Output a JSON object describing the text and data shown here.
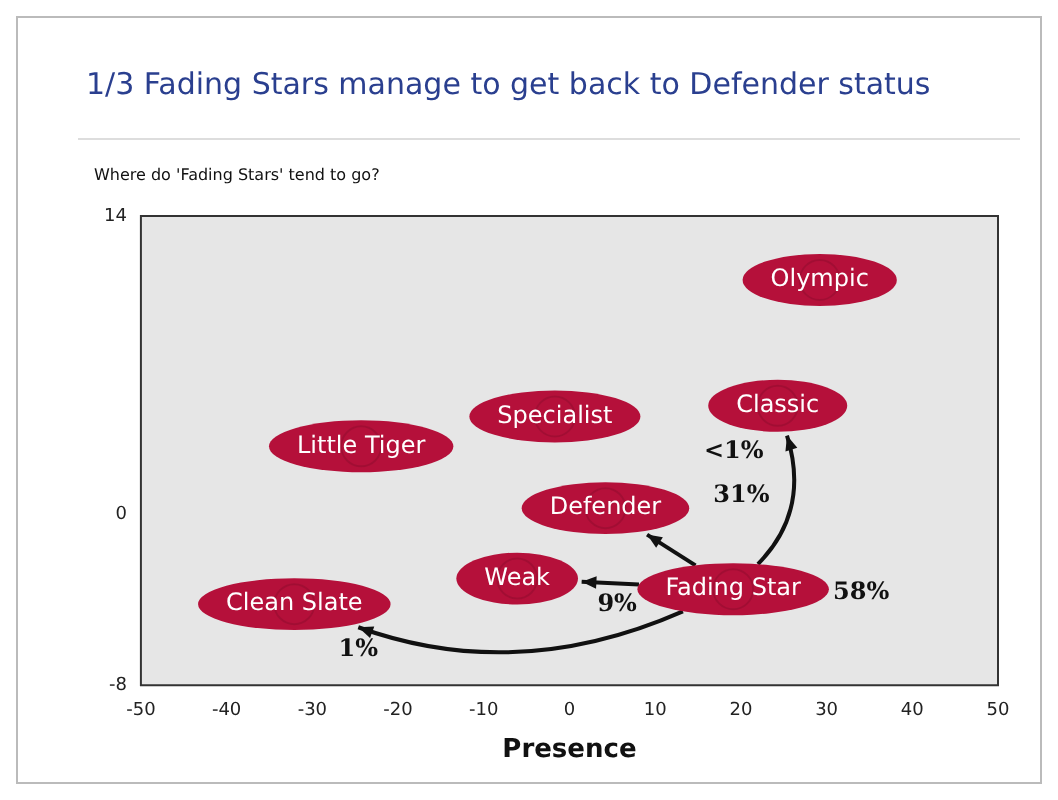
{
  "chart_data": {
    "type": "scatter",
    "title": "1/3 Fading Stars manage to get back to Defender status",
    "subtitle": "Where do 'Fading Stars' tend to go?",
    "xlabel": "Presence",
    "x": [
      29.2,
      24.3,
      -1.7,
      -24.3,
      4.2,
      -6.1,
      19.1,
      -32.1
    ],
    "values": [
      11.0,
      5.1,
      4.6,
      3.2,
      0.3,
      -3.0,
      -3.5,
      -4.2
    ],
    "value_labels": [
      "Olympic",
      "Classic",
      "Specialist",
      "Little Tiger",
      "Defender",
      "Weak",
      "Fading Star",
      "Clean Slate"
    ],
    "color": "#b5103a",
    "marker": "circle",
    "xlim": [
      -50,
      50
    ],
    "xticks": [
      -50,
      -40,
      -30,
      -20,
      -10,
      0,
      10,
      20,
      30,
      40,
      50
    ],
    "ylim": [
      -8,
      14
    ],
    "yticks": [
      -8,
      0,
      14
    ],
    "grid": false,
    "annotations": [
      "58%",
      "31%",
      "<1%",
      "9%",
      "1%"
    ]
  }
}
